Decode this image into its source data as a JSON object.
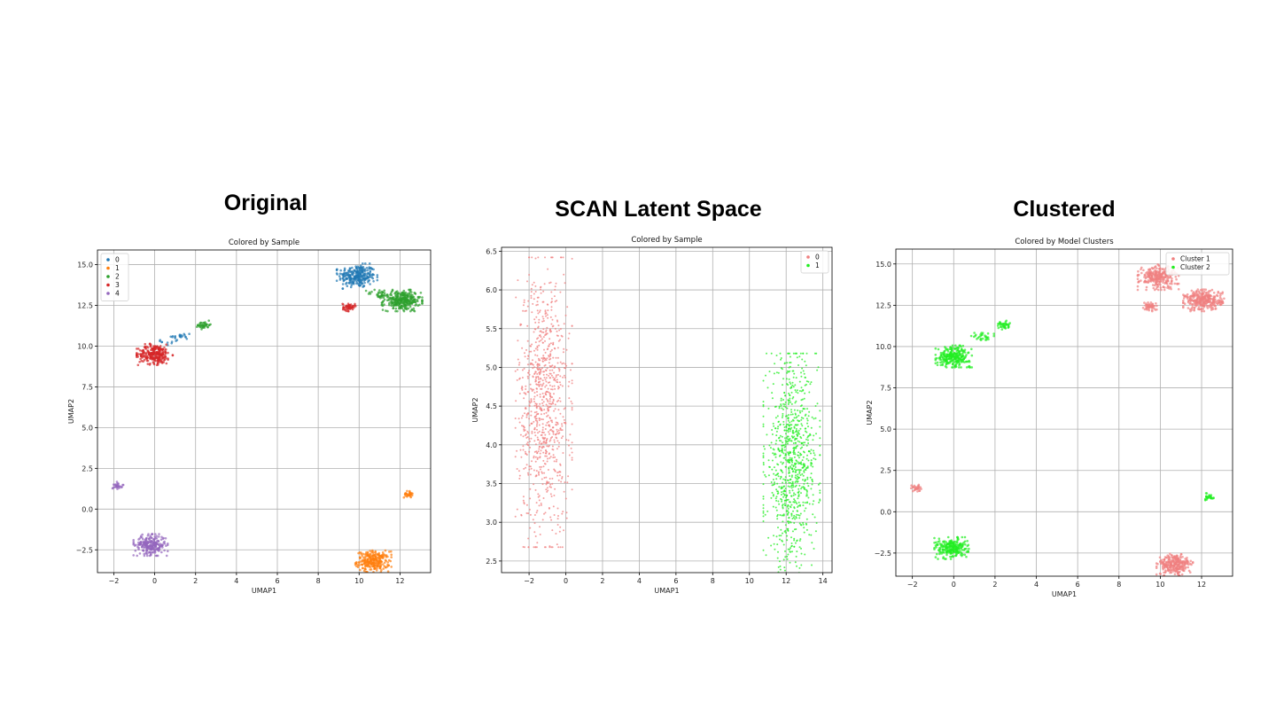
{
  "headings": [
    "Original",
    "SCAN Latent Space",
    "Clustered"
  ],
  "chart_data": [
    {
      "type": "scatter",
      "title": "Colored by Sample",
      "xlabel": "UMAP1",
      "ylabel": "UMAP2",
      "xlim": [
        -2.8,
        13.5
      ],
      "ylim": [
        -3.9,
        15.9
      ],
      "xticks": [
        -2,
        0,
        2,
        4,
        6,
        8,
        10,
        12
      ],
      "yticks": [
        -2.5,
        0.0,
        2.5,
        5.0,
        7.5,
        10.0,
        12.5,
        15.0
      ],
      "ytick_labels": [
        "−2.5",
        "0.0",
        "2.5",
        "5.0",
        "7.5",
        "10.0",
        "12.5",
        "15.0"
      ],
      "xtick_labels": [
        "−2",
        "0",
        "2",
        "4",
        "6",
        "8",
        "10",
        "12"
      ],
      "grid": true,
      "legend_position": "top-left",
      "series": [
        {
          "name": "0",
          "color": "#1f77b4",
          "clusters": [
            {
              "cx": 9.9,
              "cy": 14.3,
              "sx": 0.45,
              "sy": 0.35,
              "n": 260
            },
            {
              "cx": 1.3,
              "cy": 10.6,
              "sx": 0.25,
              "sy": 0.15,
              "n": 20
            },
            {
              "cx": 0.8,
              "cy": 10.3,
              "sx": 0.25,
              "sy": 0.15,
              "n": 10
            }
          ]
        },
        {
          "name": "1",
          "color": "#ff7f0e",
          "clusters": [
            {
              "cx": 10.7,
              "cy": -3.2,
              "sx": 0.4,
              "sy": 0.3,
              "n": 260
            },
            {
              "cx": 12.4,
              "cy": 0.9,
              "sx": 0.1,
              "sy": 0.1,
              "n": 30
            }
          ]
        },
        {
          "name": "2",
          "color": "#2ca02c",
          "clusters": [
            {
              "cx": 12.1,
              "cy": 12.8,
              "sx": 0.45,
              "sy": 0.3,
              "n": 300
            },
            {
              "cx": 2.4,
              "cy": 11.3,
              "sx": 0.15,
              "sy": 0.12,
              "n": 40
            },
            {
              "cx": 11.0,
              "cy": 13.2,
              "sx": 0.3,
              "sy": 0.15,
              "n": 30
            }
          ]
        },
        {
          "name": "3",
          "color": "#d62728",
          "clusters": [
            {
              "cx": 0.0,
              "cy": 9.5,
              "sx": 0.4,
              "sy": 0.3,
              "n": 260
            },
            {
              "cx": 9.5,
              "cy": 12.4,
              "sx": 0.15,
              "sy": 0.12,
              "n": 50
            }
          ]
        },
        {
          "name": "4",
          "color": "#9467bd",
          "clusters": [
            {
              "cx": -0.2,
              "cy": -2.2,
              "sx": 0.38,
              "sy": 0.3,
              "n": 240
            },
            {
              "cx": -1.8,
              "cy": 1.45,
              "sx": 0.12,
              "sy": 0.1,
              "n": 30
            }
          ]
        }
      ]
    },
    {
      "type": "scatter",
      "title": "Colored by Sample",
      "xlabel": "UMAP1",
      "ylabel": "UMAP2",
      "xlim": [
        -3.5,
        14.5
      ],
      "ylim": [
        2.35,
        6.55
      ],
      "xticks": [
        -2,
        0,
        2,
        4,
        6,
        8,
        10,
        12,
        14
      ],
      "xtick_labels": [
        "−2",
        "0",
        "2",
        "4",
        "6",
        "8",
        "10",
        "12",
        "14"
      ],
      "yticks": [
        2.5,
        3.0,
        3.5,
        4.0,
        4.5,
        5.0,
        5.5,
        6.0,
        6.5
      ],
      "ytick_labels": [
        "2.5",
        "3.0",
        "3.5",
        "4.0",
        "4.5",
        "5.0",
        "5.5",
        "6.0",
        "6.5"
      ],
      "grid": true,
      "legend_position": "top-right",
      "series": [
        {
          "name": "0",
          "color": "#f08080",
          "clusters": [
            {
              "cx": -1.2,
              "cy": 4.55,
              "sx": 0.7,
              "sy": 0.85,
              "n": 900
            }
          ]
        },
        {
          "name": "1",
          "color": "#22ee22",
          "clusters": [
            {
              "cx": 12.3,
              "cy": 3.75,
              "sx": 0.7,
              "sy": 0.65,
              "n": 900
            }
          ]
        }
      ]
    },
    {
      "type": "scatter",
      "title": "Colored by Model Clusters",
      "xlabel": "UMAP1",
      "ylabel": "UMAP2",
      "xlim": [
        -2.8,
        13.5
      ],
      "ylim": [
        -3.9,
        15.9
      ],
      "xticks": [
        -2,
        0,
        2,
        4,
        6,
        8,
        10,
        12
      ],
      "xtick_labels": [
        "−2",
        "0",
        "2",
        "4",
        "6",
        "8",
        "10",
        "12"
      ],
      "yticks": [
        -2.5,
        0.0,
        2.5,
        5.0,
        7.5,
        10.0,
        12.5,
        15.0
      ],
      "ytick_labels": [
        "−2.5",
        "0.0",
        "2.5",
        "5.0",
        "7.5",
        "10.0",
        "12.5",
        "15.0"
      ],
      "grid": true,
      "legend_position": "top-right",
      "series": [
        {
          "name": "Cluster 1",
          "color": "#f08080",
          "clusters": [
            {
              "cx": 9.9,
              "cy": 14.2,
              "sx": 0.45,
              "sy": 0.35,
              "n": 260
            },
            {
              "cx": 12.1,
              "cy": 12.8,
              "sx": 0.45,
              "sy": 0.3,
              "n": 300
            },
            {
              "cx": 9.5,
              "cy": 12.4,
              "sx": 0.15,
              "sy": 0.12,
              "n": 50
            },
            {
              "cx": 10.7,
              "cy": -3.2,
              "sx": 0.4,
              "sy": 0.3,
              "n": 260
            },
            {
              "cx": -1.8,
              "cy": 1.45,
              "sx": 0.12,
              "sy": 0.1,
              "n": 30
            }
          ]
        },
        {
          "name": "Cluster 2",
          "color": "#22ee22",
          "clusters": [
            {
              "cx": 0.0,
              "cy": 9.4,
              "sx": 0.4,
              "sy": 0.3,
              "n": 260
            },
            {
              "cx": 1.4,
              "cy": 10.6,
              "sx": 0.25,
              "sy": 0.15,
              "n": 30
            },
            {
              "cx": 2.4,
              "cy": 11.3,
              "sx": 0.15,
              "sy": 0.12,
              "n": 40
            },
            {
              "cx": -0.1,
              "cy": -2.2,
              "sx": 0.38,
              "sy": 0.3,
              "n": 240
            },
            {
              "cx": 12.4,
              "cy": 0.9,
              "sx": 0.1,
              "sy": 0.1,
              "n": 30
            }
          ]
        }
      ]
    }
  ]
}
